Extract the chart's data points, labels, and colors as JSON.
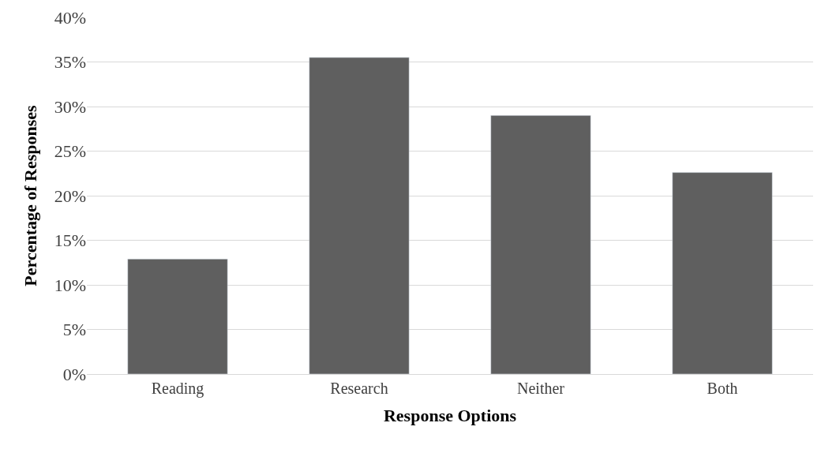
{
  "chart_data": {
    "type": "bar",
    "xlabel": "Response Options",
    "ylabel": "Percentage of Responses",
    "categories": [
      "Reading",
      "Research",
      "Neither",
      "Both"
    ],
    "values": [
      12.9,
      35.5,
      29.0,
      22.6
    ],
    "color": "#5f5f5f",
    "ylim": [
      0,
      40
    ],
    "yticks": [
      {
        "value": 0,
        "label": "0%"
      },
      {
        "value": 5,
        "label": "5%"
      },
      {
        "value": 10,
        "label": "10%"
      },
      {
        "value": 15,
        "label": "15%"
      },
      {
        "value": 20,
        "label": "20%"
      },
      {
        "value": 25,
        "label": "25%"
      },
      {
        "value": 30,
        "label": "30%"
      },
      {
        "value": 35,
        "label": "35%"
      },
      {
        "value": 40,
        "label": "40%"
      }
    ],
    "grid": "y"
  }
}
